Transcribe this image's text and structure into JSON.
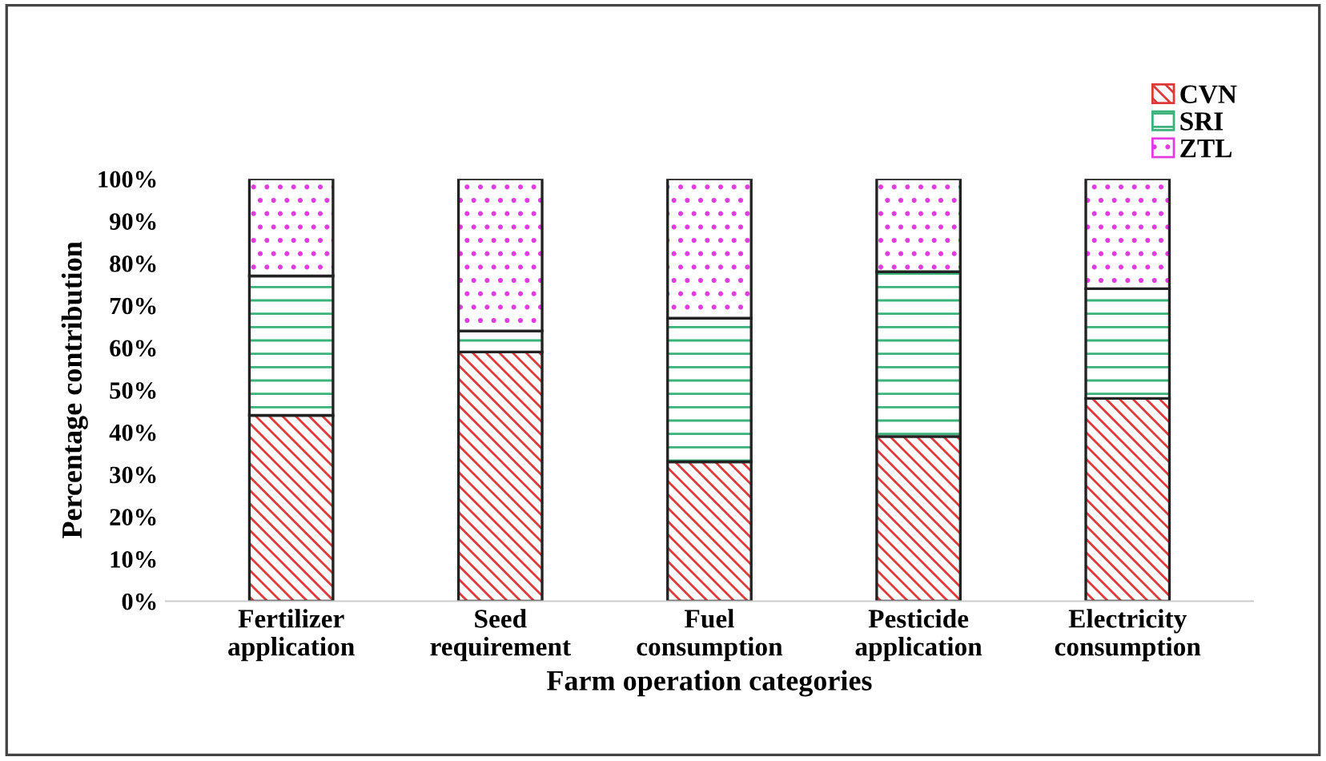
{
  "chart_data": {
    "type": "bar",
    "stacked": true,
    "xlabel": "Farm operation categories",
    "ylabel": "Percentage contribution",
    "categories": [
      "Fertilizer\napplication",
      "Seed\nrequirement",
      "Fuel\nconsumption",
      "Pesticide\napplication",
      "Electricity\nconsumption"
    ],
    "series": [
      {
        "name": "CVN",
        "color": "#e0393a",
        "values": [
          44,
          59,
          33,
          39,
          48
        ]
      },
      {
        "name": "SRI",
        "color": "#3cb37a",
        "values": [
          33,
          5,
          34,
          39,
          26
        ]
      },
      {
        "name": "ZTL",
        "color": "#e03ce0",
        "values": [
          23,
          36,
          33,
          22,
          26
        ]
      }
    ],
    "ylim": [
      0,
      100
    ],
    "yticks": [
      {
        "value": 0,
        "label": "0%"
      },
      {
        "value": 10,
        "label": "10%"
      },
      {
        "value": 20,
        "label": "20%"
      },
      {
        "value": 30,
        "label": "30%"
      },
      {
        "value": 40,
        "label": "40%"
      },
      {
        "value": 50,
        "label": "50%"
      },
      {
        "value": 60,
        "label": "60%"
      },
      {
        "value": 70,
        "label": "70%"
      },
      {
        "value": 80,
        "label": "80%"
      },
      {
        "value": 90,
        "label": "90%"
      },
      {
        "value": 100,
        "label": "100%"
      }
    ],
    "legend": "top right",
    "grid": false
  }
}
